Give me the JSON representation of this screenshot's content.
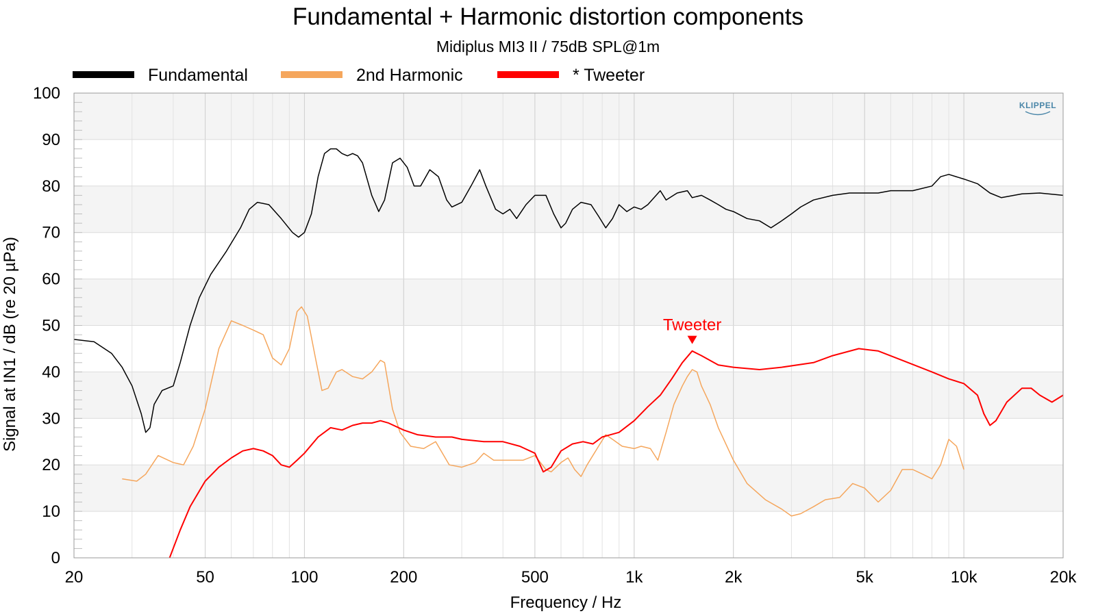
{
  "chart_data": {
    "type": "line",
    "title": "Fundamental + Harmonic distortion components",
    "subtitle": "Midiplus MI3 II / 75dB SPL@1m",
    "xlabel": "Frequency / Hz",
    "ylabel": "Signal at IN1 / dB (re 20 µPa)",
    "x_scale": "log",
    "xlim": [
      20,
      20000
    ],
    "ylim": [
      0,
      100
    ],
    "x_ticks": [
      20,
      50,
      100,
      200,
      500,
      1000,
      2000,
      5000,
      10000,
      20000
    ],
    "x_tick_labels": [
      "20",
      "50",
      "100",
      "200",
      "500",
      "1k",
      "2k",
      "5k",
      "10k",
      "20k"
    ],
    "y_ticks": [
      0,
      10,
      20,
      30,
      40,
      50,
      60,
      70,
      80,
      90,
      100
    ],
    "y_tick_labels": [
      "0",
      "10",
      "20",
      "30",
      "40",
      "50",
      "60",
      "70",
      "80",
      "90",
      "100"
    ],
    "grid": true,
    "legend_position": "top",
    "brand_logo": "KLIPPEL",
    "annotation": {
      "text": "Tweeter",
      "x": 1500,
      "y": 46,
      "color": "#ff0000"
    },
    "series": [
      {
        "name": "Fundamental",
        "color": "#000000",
        "points": [
          [
            20,
            47
          ],
          [
            23,
            46.5
          ],
          [
            26,
            44
          ],
          [
            28,
            41
          ],
          [
            30,
            37
          ],
          [
            32,
            31
          ],
          [
            33,
            27
          ],
          [
            34,
            28
          ],
          [
            35,
            33
          ],
          [
            37,
            36
          ],
          [
            40,
            37
          ],
          [
            42,
            42
          ],
          [
            45,
            50
          ],
          [
            48,
            56
          ],
          [
            52,
            61
          ],
          [
            58,
            66
          ],
          [
            64,
            71
          ],
          [
            68,
            75
          ],
          [
            72,
            76.5
          ],
          [
            78,
            76
          ],
          [
            85,
            73
          ],
          [
            92,
            70
          ],
          [
            96,
            69
          ],
          [
            100,
            70
          ],
          [
            105,
            74
          ],
          [
            110,
            82
          ],
          [
            115,
            87
          ],
          [
            120,
            88
          ],
          [
            125,
            88
          ],
          [
            130,
            87
          ],
          [
            135,
            86.5
          ],
          [
            140,
            87
          ],
          [
            145,
            86.5
          ],
          [
            150,
            85
          ],
          [
            160,
            78
          ],
          [
            168,
            74.5
          ],
          [
            175,
            77
          ],
          [
            185,
            85
          ],
          [
            195,
            86
          ],
          [
            205,
            84
          ],
          [
            215,
            80
          ],
          [
            225,
            80
          ],
          [
            240,
            83.5
          ],
          [
            255,
            82
          ],
          [
            270,
            77
          ],
          [
            280,
            75.5
          ],
          [
            300,
            76.5
          ],
          [
            320,
            80
          ],
          [
            340,
            83.5
          ],
          [
            355,
            80
          ],
          [
            380,
            75
          ],
          [
            400,
            74
          ],
          [
            420,
            75
          ],
          [
            440,
            73
          ],
          [
            470,
            76
          ],
          [
            500,
            78
          ],
          [
            540,
            78
          ],
          [
            570,
            74
          ],
          [
            600,
            71
          ],
          [
            620,
            72
          ],
          [
            650,
            75
          ],
          [
            690,
            76.5
          ],
          [
            740,
            76
          ],
          [
            780,
            73.5
          ],
          [
            820,
            71
          ],
          [
            860,
            73
          ],
          [
            900,
            76
          ],
          [
            950,
            74.5
          ],
          [
            1000,
            75.5
          ],
          [
            1050,
            75
          ],
          [
            1100,
            76
          ],
          [
            1200,
            79
          ],
          [
            1250,
            77
          ],
          [
            1350,
            78.5
          ],
          [
            1450,
            79
          ],
          [
            1500,
            77.5
          ],
          [
            1600,
            78
          ],
          [
            1700,
            77
          ],
          [
            1800,
            76
          ],
          [
            1900,
            75
          ],
          [
            2000,
            74.5
          ],
          [
            2200,
            73
          ],
          [
            2400,
            72.5
          ],
          [
            2600,
            71
          ],
          [
            2800,
            72.5
          ],
          [
            3000,
            74
          ],
          [
            3200,
            75.5
          ],
          [
            3500,
            77
          ],
          [
            4000,
            78
          ],
          [
            4500,
            78.5
          ],
          [
            5000,
            78.5
          ],
          [
            5500,
            78.5
          ],
          [
            6000,
            79
          ],
          [
            7000,
            79
          ],
          [
            8000,
            80
          ],
          [
            8500,
            82
          ],
          [
            9000,
            82.5
          ],
          [
            10000,
            81.5
          ],
          [
            11000,
            80.5
          ],
          [
            12000,
            78.5
          ],
          [
            13000,
            77.5
          ],
          [
            15000,
            78.3
          ],
          [
            17000,
            78.5
          ],
          [
            20000,
            78
          ]
        ]
      },
      {
        "name": "2nd Harmonic",
        "color": "#f5a65c",
        "points": [
          [
            28,
            17
          ],
          [
            31,
            16.5
          ],
          [
            33,
            18
          ],
          [
            36,
            22
          ],
          [
            40,
            20.5
          ],
          [
            43,
            20
          ],
          [
            46,
            24
          ],
          [
            50,
            32
          ],
          [
            55,
            45
          ],
          [
            60,
            51
          ],
          [
            65,
            50
          ],
          [
            70,
            49
          ],
          [
            75,
            48
          ],
          [
            80,
            43
          ],
          [
            85,
            41.5
          ],
          [
            90,
            45
          ],
          [
            95,
            53
          ],
          [
            98,
            54
          ],
          [
            102,
            52
          ],
          [
            108,
            43
          ],
          [
            113,
            36
          ],
          [
            118,
            36.5
          ],
          [
            125,
            40
          ],
          [
            130,
            40.5
          ],
          [
            140,
            39
          ],
          [
            150,
            38.5
          ],
          [
            160,
            40
          ],
          [
            170,
            42.5
          ],
          [
            175,
            42
          ],
          [
            185,
            32
          ],
          [
            195,
            27
          ],
          [
            210,
            24
          ],
          [
            230,
            23.5
          ],
          [
            250,
            25
          ],
          [
            275,
            20
          ],
          [
            300,
            19.5
          ],
          [
            330,
            20.5
          ],
          [
            350,
            22.5
          ],
          [
            375,
            21
          ],
          [
            400,
            21
          ],
          [
            430,
            21
          ],
          [
            460,
            21
          ],
          [
            500,
            22
          ],
          [
            540,
            19
          ],
          [
            560,
            18.5
          ],
          [
            600,
            20.5
          ],
          [
            630,
            21.5
          ],
          [
            660,
            19
          ],
          [
            690,
            17.5
          ],
          [
            720,
            20
          ],
          [
            780,
            24
          ],
          [
            820,
            26.5
          ],
          [
            860,
            25.5
          ],
          [
            920,
            24
          ],
          [
            1000,
            23.5
          ],
          [
            1050,
            24
          ],
          [
            1120,
            23.5
          ],
          [
            1180,
            21
          ],
          [
            1250,
            27
          ],
          [
            1320,
            33
          ],
          [
            1400,
            37
          ],
          [
            1450,
            39
          ],
          [
            1500,
            40.5
          ],
          [
            1550,
            40
          ],
          [
            1600,
            37
          ],
          [
            1700,
            33
          ],
          [
            1800,
            28
          ],
          [
            2000,
            21
          ],
          [
            2200,
            16
          ],
          [
            2500,
            12.5
          ],
          [
            2800,
            10.5
          ],
          [
            3000,
            9
          ],
          [
            3200,
            9.5
          ],
          [
            3500,
            11
          ],
          [
            3800,
            12.5
          ],
          [
            4200,
            13
          ],
          [
            4600,
            16
          ],
          [
            5000,
            15
          ],
          [
            5500,
            12
          ],
          [
            6000,
            14.5
          ],
          [
            6500,
            19
          ],
          [
            7000,
            19
          ],
          [
            7500,
            18
          ],
          [
            8000,
            17
          ],
          [
            8500,
            20
          ],
          [
            9000,
            25.5
          ],
          [
            9500,
            24
          ],
          [
            10000,
            19
          ]
        ]
      },
      {
        "name": "* Tweeter",
        "color": "#ff0000",
        "points": [
          [
            39,
            0
          ],
          [
            42,
            6
          ],
          [
            45,
            11
          ],
          [
            50,
            16.5
          ],
          [
            55,
            19.5
          ],
          [
            60,
            21.5
          ],
          [
            65,
            23
          ],
          [
            70,
            23.5
          ],
          [
            75,
            23
          ],
          [
            80,
            22
          ],
          [
            85,
            20
          ],
          [
            90,
            19.5
          ],
          [
            95,
            21
          ],
          [
            100,
            22.5
          ],
          [
            110,
            26
          ],
          [
            120,
            28
          ],
          [
            130,
            27.5
          ],
          [
            140,
            28.5
          ],
          [
            150,
            29
          ],
          [
            160,
            29
          ],
          [
            170,
            29.5
          ],
          [
            180,
            29
          ],
          [
            200,
            27.5
          ],
          [
            220,
            26.5
          ],
          [
            250,
            26
          ],
          [
            280,
            26
          ],
          [
            300,
            25.5
          ],
          [
            350,
            25
          ],
          [
            400,
            25
          ],
          [
            450,
            24
          ],
          [
            500,
            22.5
          ],
          [
            530,
            18.5
          ],
          [
            560,
            19.5
          ],
          [
            600,
            23
          ],
          [
            650,
            24.5
          ],
          [
            700,
            25
          ],
          [
            750,
            24.5
          ],
          [
            800,
            26
          ],
          [
            900,
            27
          ],
          [
            1000,
            29.5
          ],
          [
            1100,
            32.5
          ],
          [
            1200,
            35
          ],
          [
            1300,
            38.5
          ],
          [
            1400,
            42
          ],
          [
            1500,
            44.5
          ],
          [
            1600,
            43.5
          ],
          [
            1800,
            41.5
          ],
          [
            2000,
            41
          ],
          [
            2400,
            40.5
          ],
          [
            2800,
            41
          ],
          [
            3500,
            42
          ],
          [
            4000,
            43.5
          ],
          [
            4800,
            45
          ],
          [
            5500,
            44.5
          ],
          [
            6500,
            42.5
          ],
          [
            8000,
            40
          ],
          [
            9000,
            38.5
          ],
          [
            10000,
            37.5
          ],
          [
            11000,
            35
          ],
          [
            11500,
            31
          ],
          [
            12000,
            28.5
          ],
          [
            12500,
            29.5
          ],
          [
            13500,
            33.5
          ],
          [
            15000,
            36.5
          ],
          [
            16000,
            36.5
          ],
          [
            17000,
            35
          ],
          [
            18500,
            33.5
          ],
          [
            20000,
            35
          ]
        ]
      }
    ]
  }
}
